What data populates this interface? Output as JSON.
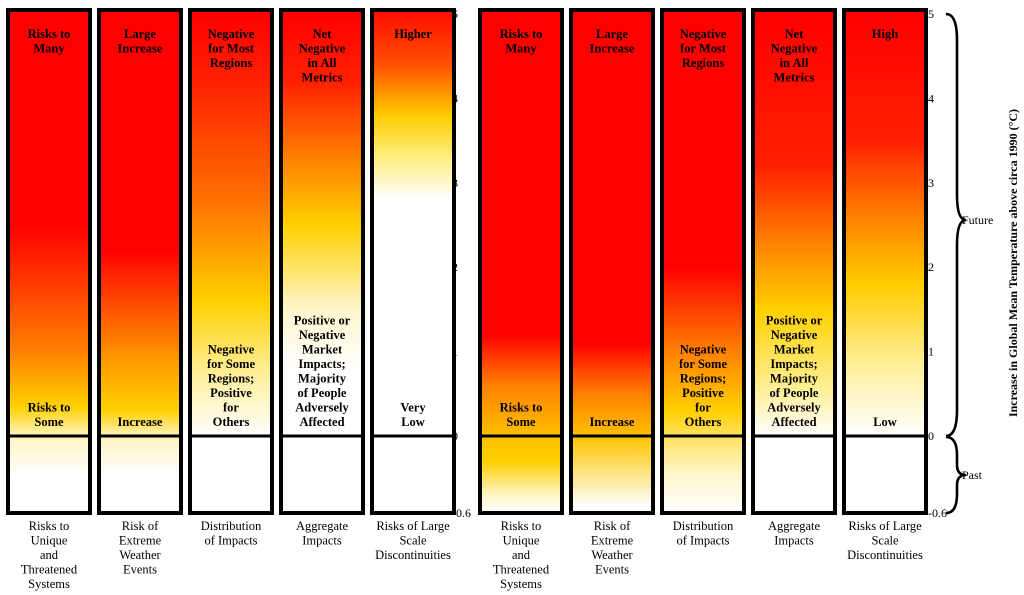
{
  "chart_data": {
    "type": "diagram",
    "yaxis": {
      "title": "Increase in Global Mean Temperature above circa 1990 (°C)",
      "ticks": [
        "5",
        "4",
        "3",
        "2",
        "1",
        "0",
        "-0.6"
      ],
      "range": [
        -0.6,
        5
      ]
    },
    "periods": {
      "future": "Future",
      "past": "Past"
    },
    "panels": [
      {
        "columns": [
          {
            "top_label": [
              "Risks to",
              "Many"
            ],
            "bottom_label": [
              "Risks to",
              "Some"
            ],
            "caption": [
              "Risks to",
              "Unique",
              "and",
              "Threatened",
              "Systems"
            ],
            "gradient": [
              {
                "t": 5,
                "c": "#ff0000"
              },
              {
                "t": 2.5,
                "c": "#ff0000"
              },
              {
                "t": 1.0,
                "c": "#ff8000"
              },
              {
                "t": 0.35,
                "c": "#ffd000"
              },
              {
                "t": 0,
                "c": "#fff4c0"
              },
              {
                "t": -0.3,
                "c": "#ffffff"
              },
              {
                "t": -0.6,
                "c": "#ffffff"
              }
            ]
          },
          {
            "top_label": [
              "Large",
              "Increase"
            ],
            "bottom_label": [
              "Increase"
            ],
            "caption": [
              "Risk of",
              "Extreme",
              "Weather",
              "Events"
            ],
            "gradient": [
              {
                "t": 5,
                "c": "#ff0000"
              },
              {
                "t": 2.2,
                "c": "#ff0000"
              },
              {
                "t": 0.9,
                "c": "#ff9a00"
              },
              {
                "t": 0.3,
                "c": "#ffd000"
              },
              {
                "t": 0,
                "c": "#fff3c0"
              },
              {
                "t": -0.3,
                "c": "#ffffff"
              },
              {
                "t": -0.6,
                "c": "#ffffff"
              }
            ]
          },
          {
            "top_label": [
              "Negative",
              "for Most",
              "Regions"
            ],
            "bottom_label": [
              "Negative",
              "for Some",
              "Regions;",
              "Positive",
              "for",
              "Others"
            ],
            "caption": [
              "Distribution",
              "of Impacts"
            ],
            "gradient": [
              {
                "t": 5,
                "c": "#ff0000"
              },
              {
                "t": 4.2,
                "c": "#ff2000"
              },
              {
                "t": 2.8,
                "c": "#ff7000"
              },
              {
                "t": 1.6,
                "c": "#ffd000"
              },
              {
                "t": 0.7,
                "c": "#fff0a0"
              },
              {
                "t": 0,
                "c": "#ffffff"
              },
              {
                "t": -0.6,
                "c": "#ffffff"
              }
            ]
          },
          {
            "top_label": [
              "Net",
              "Negative",
              "in All",
              "Metrics"
            ],
            "bottom_label": [
              "Positive or",
              "Negative",
              "Market",
              "Impacts;",
              "Majority",
              "of People",
              "Adversely",
              "Affected"
            ],
            "caption": [
              "Aggregate",
              "Impacts"
            ],
            "gradient": [
              {
                "t": 5,
                "c": "#ff0000"
              },
              {
                "t": 4.2,
                "c": "#ff2000"
              },
              {
                "t": 3.3,
                "c": "#ff8000"
              },
              {
                "t": 2.5,
                "c": "#ffd000"
              },
              {
                "t": 1.5,
                "c": "#fff6cc"
              },
              {
                "t": 0.8,
                "c": "#ffffff"
              },
              {
                "t": -0.6,
                "c": "#ffffff"
              }
            ]
          },
          {
            "top_label": [
              "Higher"
            ],
            "bottom_label": [
              "Very",
              "Low"
            ],
            "caption": [
              "Risks of Large",
              "Scale",
              "Discontinuities"
            ],
            "gradient": [
              {
                "t": 5,
                "c": "#ff1000"
              },
              {
                "t": 4.4,
                "c": "#ff5000"
              },
              {
                "t": 3.8,
                "c": "#ffcc00"
              },
              {
                "t": 3.3,
                "c": "#ffee80"
              },
              {
                "t": 2.8,
                "c": "#ffffff"
              },
              {
                "t": -0.6,
                "c": "#ffffff"
              }
            ]
          }
        ]
      },
      {
        "columns": [
          {
            "top_label": [
              "Risks to",
              "Many"
            ],
            "bottom_label": [
              "Risks to",
              "Some"
            ],
            "caption": [
              "Risks to",
              "Unique",
              "and",
              "Threatened",
              "Systems"
            ],
            "gradient": [
              {
                "t": 5,
                "c": "#ff0000"
              },
              {
                "t": 1.2,
                "c": "#ff0000"
              },
              {
                "t": 0.6,
                "c": "#ff8000"
              },
              {
                "t": 0,
                "c": "#ffc000"
              },
              {
                "t": -0.2,
                "c": "#ffd000"
              },
              {
                "t": -0.45,
                "c": "#fff4c0"
              },
              {
                "t": -0.6,
                "c": "#ffffff"
              }
            ]
          },
          {
            "top_label": [
              "Large",
              "Increase"
            ],
            "bottom_label": [
              "Increase"
            ],
            "caption": [
              "Risk of",
              "Extreme",
              "Weather",
              "Events"
            ],
            "gradient": [
              {
                "t": 5,
                "c": "#ff0000"
              },
              {
                "t": 1.1,
                "c": "#ff0000"
              },
              {
                "t": 0.5,
                "c": "#ff8000"
              },
              {
                "t": 0,
                "c": "#ffc000"
              },
              {
                "t": -0.25,
                "c": "#ffe070"
              },
              {
                "t": -0.55,
                "c": "#ffffff"
              },
              {
                "t": -0.6,
                "c": "#ffffff"
              }
            ]
          },
          {
            "top_label": [
              "Negative",
              "for Most",
              "Regions"
            ],
            "bottom_label": [
              "Negative",
              "for Some",
              "Regions;",
              "Positive",
              "for",
              "Others"
            ],
            "caption": [
              "Distribution",
              "of Impacts"
            ],
            "gradient": [
              {
                "t": 5,
                "c": "#ff0000"
              },
              {
                "t": 2.0,
                "c": "#ff0000"
              },
              {
                "t": 1.0,
                "c": "#ff8000"
              },
              {
                "t": 0.3,
                "c": "#ffd000"
              },
              {
                "t": 0,
                "c": "#ffe060"
              },
              {
                "t": -0.3,
                "c": "#fff6cc"
              },
              {
                "t": -0.6,
                "c": "#ffffff"
              }
            ]
          },
          {
            "top_label": [
              "Net",
              "Negative",
              "in All",
              "Metrics"
            ],
            "bottom_label": [
              "Positive or",
              "Negative",
              "Market",
              "Impacts;",
              "Majority",
              "of People",
              "Adversely",
              "Affected"
            ],
            "caption": [
              "Aggregate",
              "Impacts"
            ],
            "gradient": [
              {
                "t": 5,
                "c": "#ff0000"
              },
              {
                "t": 3.2,
                "c": "#ff2000"
              },
              {
                "t": 2.3,
                "c": "#ff8000"
              },
              {
                "t": 1.5,
                "c": "#ffd000"
              },
              {
                "t": 0.6,
                "c": "#ffee90"
              },
              {
                "t": 0,
                "c": "#ffffff"
              },
              {
                "t": -0.6,
                "c": "#ffffff"
              }
            ]
          },
          {
            "top_label": [
              "High"
            ],
            "bottom_label": [
              "Low"
            ],
            "caption": [
              "Risks of Large",
              "Scale",
              "Discontinuities"
            ],
            "gradient": [
              {
                "t": 5,
                "c": "#ff0000"
              },
              {
                "t": 3.5,
                "c": "#ff2000"
              },
              {
                "t": 2.6,
                "c": "#ff8000"
              },
              {
                "t": 1.8,
                "c": "#ffcc00"
              },
              {
                "t": 0.8,
                "c": "#fff0a0"
              },
              {
                "t": 0,
                "c": "#ffffff"
              },
              {
                "t": -0.6,
                "c": "#ffffff"
              }
            ]
          }
        ]
      }
    ]
  }
}
